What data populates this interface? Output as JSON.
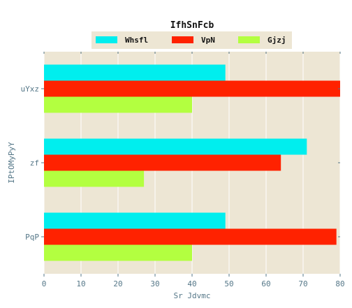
{
  "chart_data": {
    "type": "bar",
    "orientation": "horizontal",
    "title": "IfhSnFcb",
    "xlabel": "Sr Jdvmc",
    "ylabel": "IPtOMyPyY",
    "categories": [
      "uYxz",
      "zf",
      "PqP"
    ],
    "series": [
      {
        "name": "Whsfl",
        "color": "#00eeee",
        "values": [
          49,
          71,
          49
        ]
      },
      {
        "name": "VpN",
        "color": "#ff2200",
        "values": [
          80,
          64,
          79
        ]
      },
      {
        "name": "Gjzj",
        "color": "#b3ff40",
        "values": [
          40,
          27,
          40
        ]
      }
    ],
    "xlim": [
      0,
      80
    ],
    "xticks": [
      0,
      10,
      20,
      30,
      40,
      50,
      60,
      70,
      80
    ],
    "grid": true,
    "legend_position": "top-center",
    "background_color": "#ede6d4",
    "grid_color": "#ffffff"
  }
}
